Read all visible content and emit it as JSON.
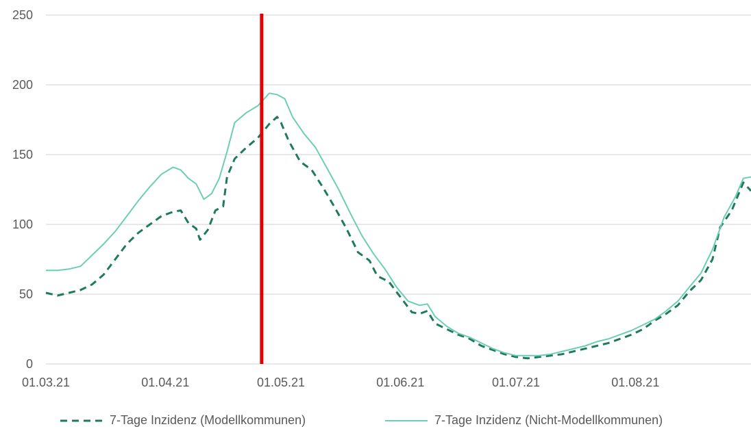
{
  "chart_data": {
    "type": "line",
    "title": "",
    "xlabel": "",
    "ylabel": "",
    "ylim": [
      0,
      250
    ],
    "yticks": [
      0,
      50,
      100,
      150,
      200,
      250
    ],
    "grid": true,
    "legend_position": "bottom",
    "x_range": [
      "2021-03-01",
      "2021-08-31"
    ],
    "x_tick_labels": [
      {
        "date": "2021-03-01",
        "label": "01.03.21"
      },
      {
        "date": "2021-04-01",
        "label": "01.04.21"
      },
      {
        "date": "2021-05-01",
        "label": "01.05.21"
      },
      {
        "date": "2021-06-01",
        "label": "01.06.21"
      },
      {
        "date": "2021-07-01",
        "label": "01.07.21"
      },
      {
        "date": "2021-08-01",
        "label": "01.08.21"
      }
    ],
    "marker_line": {
      "date": "2021-04-26",
      "color": "#e00000"
    },
    "series": [
      {
        "name": "7-Tage Inzidenz (Modellkommunen)",
        "style": "dashed",
        "color": "#1e7a5a",
        "points": [
          [
            "2021-03-01",
            51
          ],
          [
            "2021-03-04",
            49
          ],
          [
            "2021-03-07",
            51
          ],
          [
            "2021-03-10",
            53
          ],
          [
            "2021-03-13",
            57
          ],
          [
            "2021-03-16",
            64
          ],
          [
            "2021-03-19",
            75
          ],
          [
            "2021-03-22",
            86
          ],
          [
            "2021-03-25",
            94
          ],
          [
            "2021-03-28",
            100
          ],
          [
            "2021-03-31",
            106
          ],
          [
            "2021-04-03",
            109
          ],
          [
            "2021-04-05",
            110
          ],
          [
            "2021-04-07",
            101
          ],
          [
            "2021-04-09",
            97
          ],
          [
            "2021-04-10",
            89
          ],
          [
            "2021-04-12",
            96
          ],
          [
            "2021-04-14",
            110
          ],
          [
            "2021-04-16",
            113
          ],
          [
            "2021-04-17",
            134
          ],
          [
            "2021-04-19",
            147
          ],
          [
            "2021-04-22",
            155
          ],
          [
            "2021-04-25",
            162
          ],
          [
            "2021-04-28",
            172
          ],
          [
            "2021-04-30",
            177
          ],
          [
            "2021-05-01",
            173
          ],
          [
            "2021-05-03",
            160
          ],
          [
            "2021-05-06",
            145
          ],
          [
            "2021-05-09",
            139
          ],
          [
            "2021-05-12",
            126
          ],
          [
            "2021-05-15",
            112
          ],
          [
            "2021-05-18",
            97
          ],
          [
            "2021-05-21",
            80
          ],
          [
            "2021-05-24",
            74
          ],
          [
            "2021-05-26",
            63
          ],
          [
            "2021-05-29",
            59
          ],
          [
            "2021-06-01",
            48
          ],
          [
            "2021-06-04",
            37
          ],
          [
            "2021-06-06",
            36
          ],
          [
            "2021-06-08",
            38
          ],
          [
            "2021-06-10",
            29
          ],
          [
            "2021-06-13",
            25
          ],
          [
            "2021-06-16",
            21
          ],
          [
            "2021-06-19",
            18
          ],
          [
            "2021-06-22",
            13
          ],
          [
            "2021-06-25",
            10
          ],
          [
            "2021-06-28",
            7
          ],
          [
            "2021-07-01",
            5
          ],
          [
            "2021-07-04",
            4
          ],
          [
            "2021-07-07",
            5
          ],
          [
            "2021-07-10",
            6
          ],
          [
            "2021-07-13",
            7
          ],
          [
            "2021-07-16",
            9
          ],
          [
            "2021-07-19",
            11
          ],
          [
            "2021-07-22",
            13
          ],
          [
            "2021-07-25",
            15
          ],
          [
            "2021-07-28",
            18
          ],
          [
            "2021-07-31",
            21
          ],
          [
            "2021-08-03",
            25
          ],
          [
            "2021-08-06",
            31
          ],
          [
            "2021-08-09",
            36
          ],
          [
            "2021-08-12",
            42
          ],
          [
            "2021-08-15",
            52
          ],
          [
            "2021-08-18",
            60
          ],
          [
            "2021-08-21",
            75
          ],
          [
            "2021-08-23",
            98
          ],
          [
            "2021-08-26",
            110
          ],
          [
            "2021-08-29",
            130
          ],
          [
            "2021-08-31",
            124
          ]
        ]
      },
      {
        "name": "7-Tage Inzidenz (Nicht-Modellkommunen)",
        "style": "solid",
        "color": "#6ccdb5",
        "points": [
          [
            "2021-03-01",
            67
          ],
          [
            "2021-03-04",
            67
          ],
          [
            "2021-03-07",
            68
          ],
          [
            "2021-03-10",
            70
          ],
          [
            "2021-03-13",
            78
          ],
          [
            "2021-03-16",
            86
          ],
          [
            "2021-03-19",
            95
          ],
          [
            "2021-03-22",
            106
          ],
          [
            "2021-03-25",
            117
          ],
          [
            "2021-03-28",
            127
          ],
          [
            "2021-03-31",
            136
          ],
          [
            "2021-04-03",
            141
          ],
          [
            "2021-04-05",
            139
          ],
          [
            "2021-04-07",
            133
          ],
          [
            "2021-04-09",
            129
          ],
          [
            "2021-04-11",
            118
          ],
          [
            "2021-04-13",
            122
          ],
          [
            "2021-04-15",
            133
          ],
          [
            "2021-04-17",
            152
          ],
          [
            "2021-04-19",
            173
          ],
          [
            "2021-04-22",
            180
          ],
          [
            "2021-04-25",
            185
          ],
          [
            "2021-04-28",
            194
          ],
          [
            "2021-04-30",
            193
          ],
          [
            "2021-05-02",
            190
          ],
          [
            "2021-05-04",
            177
          ],
          [
            "2021-05-07",
            165
          ],
          [
            "2021-05-10",
            155
          ],
          [
            "2021-05-13",
            140
          ],
          [
            "2021-05-16",
            125
          ],
          [
            "2021-05-19",
            108
          ],
          [
            "2021-05-22",
            92
          ],
          [
            "2021-05-25",
            79
          ],
          [
            "2021-05-28",
            68
          ],
          [
            "2021-05-31",
            55
          ],
          [
            "2021-06-03",
            45
          ],
          [
            "2021-06-06",
            42
          ],
          [
            "2021-06-08",
            43
          ],
          [
            "2021-06-10",
            34
          ],
          [
            "2021-06-13",
            27
          ],
          [
            "2021-06-16",
            22
          ],
          [
            "2021-06-19",
            19
          ],
          [
            "2021-06-22",
            15
          ],
          [
            "2021-06-25",
            11
          ],
          [
            "2021-06-28",
            8
          ],
          [
            "2021-07-01",
            6
          ],
          [
            "2021-07-04",
            6
          ],
          [
            "2021-07-07",
            6
          ],
          [
            "2021-07-10",
            7
          ],
          [
            "2021-07-13",
            9
          ],
          [
            "2021-07-16",
            11
          ],
          [
            "2021-07-19",
            13
          ],
          [
            "2021-07-22",
            16
          ],
          [
            "2021-07-25",
            18
          ],
          [
            "2021-07-28",
            21
          ],
          [
            "2021-07-31",
            24
          ],
          [
            "2021-08-03",
            28
          ],
          [
            "2021-08-06",
            32
          ],
          [
            "2021-08-09",
            38
          ],
          [
            "2021-08-12",
            45
          ],
          [
            "2021-08-15",
            55
          ],
          [
            "2021-08-18",
            65
          ],
          [
            "2021-08-21",
            82
          ],
          [
            "2021-08-24",
            105
          ],
          [
            "2021-08-27",
            120
          ],
          [
            "2021-08-29",
            133
          ],
          [
            "2021-08-31",
            134
          ]
        ]
      }
    ]
  }
}
